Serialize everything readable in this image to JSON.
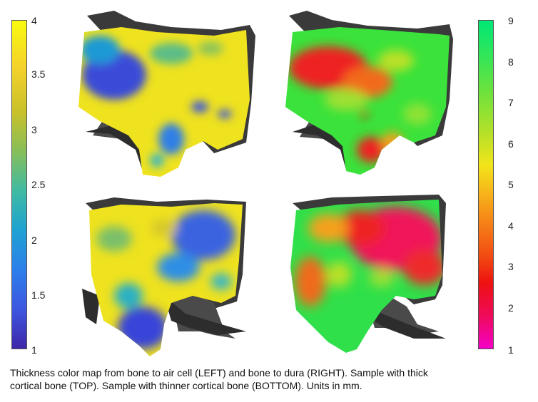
{
  "left_colorbar": {
    "ticks": [
      "4",
      "3.5",
      "3",
      "2.5",
      "2",
      "1.5",
      "1"
    ]
  },
  "right_colorbar": {
    "ticks": [
      "9",
      "8",
      "7",
      "6",
      "5",
      "4",
      "3",
      "2",
      "1"
    ]
  },
  "panels": [
    {
      "id": "top-left",
      "colormap": "parula"
    },
    {
      "id": "top-right",
      "colormap": "red-green"
    },
    {
      "id": "bottom-left",
      "colormap": "parula"
    },
    {
      "id": "bottom-right",
      "colormap": "red-green"
    }
  ],
  "caption": {
    "line1": "Thickness color map from bone to air cell (LEFT) and bone to dura (RIGHT).  Sample with thick",
    "line2": "cortical bone (TOP). Sample with thinner cortical bone (BOTTOM). Units in mm."
  }
}
